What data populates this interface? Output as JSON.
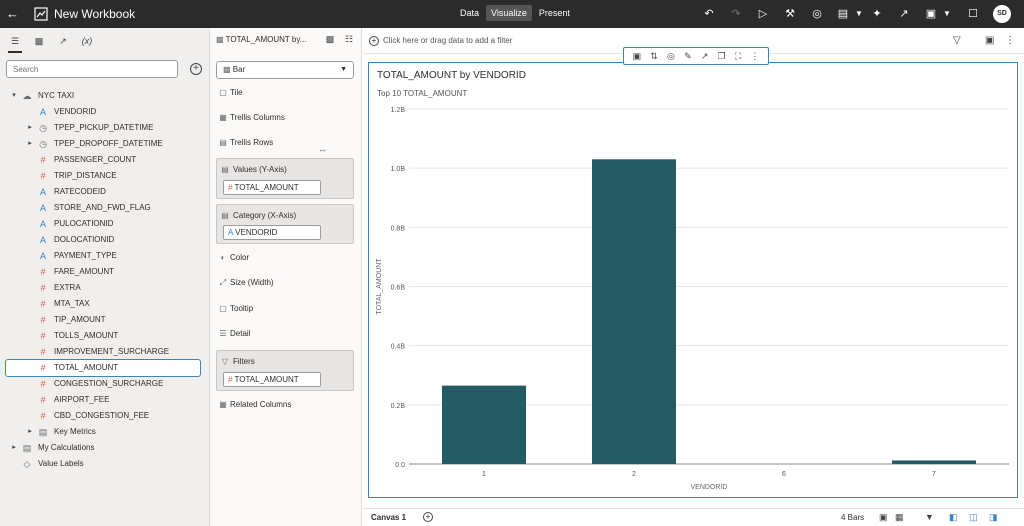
{
  "topbar": {
    "back_icon": "arrow-left-icon",
    "title": "New Workbook",
    "modes": [
      "Data",
      "Visualize",
      "Present"
    ],
    "active_mode": "Visualize",
    "user_initials": "SD"
  },
  "data_panel": {
    "search_placeholder": "Search",
    "tree": [
      {
        "label": "NYC TAXI",
        "type": "source",
        "level": 0,
        "expanded": true
      },
      {
        "label": "VENDORID",
        "type": "attribute",
        "level": 1
      },
      {
        "label": "TPEP_PICKUP_DATETIME",
        "type": "time",
        "level": 1,
        "expandable": true
      },
      {
        "label": "TPEP_DROPOFF_DATETIME",
        "type": "time",
        "level": 1,
        "expandable": true
      },
      {
        "label": "PASSENGER_COUNT",
        "type": "measure",
        "level": 1
      },
      {
        "label": "TRIP_DISTANCE",
        "type": "measure",
        "level": 1
      },
      {
        "label": "RATECODEID",
        "type": "attribute",
        "level": 1
      },
      {
        "label": "STORE_AND_FWD_FLAG",
        "type": "attribute",
        "level": 1
      },
      {
        "label": "PULOCATIONID",
        "type": "attribute",
        "level": 1
      },
      {
        "label": "DOLOCATIONID",
        "type": "attribute",
        "level": 1
      },
      {
        "label": "PAYMENT_TYPE",
        "type": "attribute",
        "level": 1
      },
      {
        "label": "FARE_AMOUNT",
        "type": "measure",
        "level": 1
      },
      {
        "label": "EXTRA",
        "type": "measure",
        "level": 1
      },
      {
        "label": "MTA_TAX",
        "type": "measure",
        "level": 1
      },
      {
        "label": "TIP_AMOUNT",
        "type": "measure",
        "level": 1
      },
      {
        "label": "TOLLS_AMOUNT",
        "type": "measure",
        "level": 1
      },
      {
        "label": "IMPROVEMENT_SURCHARGE",
        "type": "measure",
        "level": 1
      },
      {
        "label": "TOTAL_AMOUNT",
        "type": "measure",
        "level": 1,
        "selected": true
      },
      {
        "label": "CONGESTION_SURCHARGE",
        "type": "measure",
        "level": 1
      },
      {
        "label": "AIRPORT_FEE",
        "type": "measure",
        "level": 1
      },
      {
        "label": "CBD_CONGESTION_FEE",
        "type": "measure",
        "level": 1
      },
      {
        "label": "Key Metrics",
        "type": "folder",
        "level": 1,
        "expandable": true
      },
      {
        "label": "My Calculations",
        "type": "folder",
        "level": 0,
        "expandable": true
      },
      {
        "label": "Value Labels",
        "type": "tag",
        "level": 0
      }
    ]
  },
  "grammar": {
    "title": "TOTAL_AMOUNT by...",
    "chart_type": "Bar",
    "items": {
      "tile": "Tile",
      "trellis_columns": "Trellis Columns",
      "trellis_rows": "Trellis Rows",
      "color": "Color",
      "size": "Size (Width)",
      "tooltip": "Tooltip",
      "detail": "Detail",
      "related_columns": "Related Columns"
    },
    "values_label": "Values (Y-Axis)",
    "values_pill": "TOTAL_AMOUNT",
    "category_label": "Category (X-Axis)",
    "category_pill": "VENDORID",
    "filters_label": "Filters",
    "filters_pill": "TOTAL_AMOUNT"
  },
  "canvas": {
    "filter_placeholder": "Click here or drag data to add a filter",
    "tab_name": "Canvas 1",
    "bar_count": "4 Bars"
  },
  "chart_data": {
    "type": "bar",
    "title": "TOTAL_AMOUNT by VENDORID",
    "subtitle": "Top 10 TOTAL_AMOUNT",
    "xlabel": "VENDORID",
    "ylabel": "TOTAL_AMOUNT",
    "categories": [
      "1",
      "2",
      "6",
      "7"
    ],
    "values": [
      0.265,
      1.03,
      0,
      0.012
    ],
    "value_unit": "B",
    "ylim": [
      0,
      1.2
    ],
    "yticks": [
      "0.0",
      "0.2B",
      "0.4B",
      "0.6B",
      "0.8B",
      "1.0B",
      "1.2B"
    ],
    "ytick_values": [
      0,
      0.2,
      0.4,
      0.6,
      0.8,
      1.0,
      1.2
    ],
    "bar_color": "#255c63",
    "grid": true
  }
}
